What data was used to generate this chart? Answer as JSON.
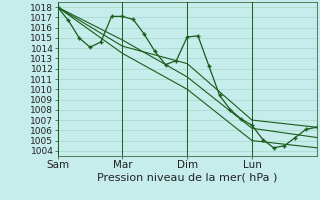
{
  "xlabel": "Pression niveau de la mer( hPa )",
  "bg_color": "#c6ecec",
  "grid_color": "#a8d8c8",
  "line_color": "#1a5c1a",
  "ylim": [
    1003.5,
    1018.5
  ],
  "yticks": [
    1004,
    1005,
    1006,
    1007,
    1008,
    1009,
    1010,
    1011,
    1012,
    1013,
    1014,
    1015,
    1016,
    1017,
    1018
  ],
  "xtick_labels": [
    "Sam",
    "Mar",
    "Dim",
    "Lun"
  ],
  "xtick_positions": [
    0,
    36,
    72,
    108
  ],
  "xlim": [
    0,
    144
  ],
  "vline_positions": [
    0,
    36,
    72,
    108
  ],
  "series1_x": [
    0,
    6,
    12,
    18,
    24,
    30,
    36,
    42,
    48,
    54,
    60,
    66,
    72,
    78,
    84,
    90,
    96,
    102,
    108,
    114,
    120,
    126,
    132,
    138,
    144
  ],
  "series1_y": [
    1018.0,
    1016.7,
    1015.0,
    1014.1,
    1014.6,
    1017.1,
    1017.1,
    1016.8,
    1015.4,
    1013.7,
    1012.4,
    1012.8,
    1015.1,
    1015.2,
    1012.3,
    1009.4,
    1008.0,
    1007.1,
    1006.5,
    1005.1,
    1004.3,
    1004.5,
    1005.3,
    1006.1,
    1006.3
  ],
  "series2_x": [
    0,
    36,
    72,
    108,
    144
  ],
  "series2_y": [
    1018.0,
    1014.2,
    1012.5,
    1007.0,
    1006.3
  ],
  "series3_x": [
    0,
    36,
    72,
    108,
    144
  ],
  "series3_y": [
    1018.0,
    1013.5,
    1010.0,
    1005.0,
    1004.3
  ],
  "series4_x": [
    0,
    36,
    72,
    108,
    144
  ],
  "series4_y": [
    1018.0,
    1014.8,
    1011.2,
    1006.2,
    1005.3
  ],
  "font_size_xlabel": 8,
  "font_size_ytick": 6.5,
  "font_size_xtick": 7.5
}
